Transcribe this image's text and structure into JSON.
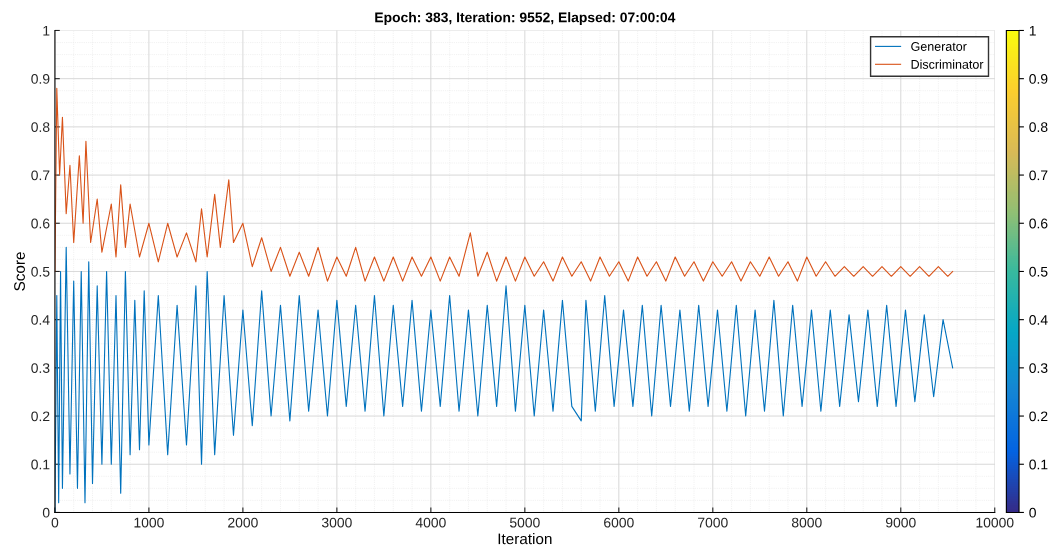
{
  "chart_data": {
    "type": "line",
    "title": "Epoch: 383, Iteration: 9552, Elapsed: 07:00:04",
    "xlabel": "Iteration",
    "ylabel": "Score",
    "xlim": [
      0,
      10000
    ],
    "xticks": [
      0,
      1000,
      2000,
      3000,
      4000,
      5000,
      6000,
      7000,
      8000,
      9000,
      10000
    ],
    "ylim": [
      0,
      1
    ],
    "yticks": [
      0,
      0.1,
      0.2,
      0.3,
      0.4,
      0.5,
      0.6,
      0.7,
      0.8,
      0.9,
      1
    ],
    "clim": [
      0,
      1
    ],
    "cticks": [
      0,
      0.1,
      0.2,
      0.3,
      0.4,
      0.5,
      0.6,
      0.7,
      0.8,
      0.9,
      1
    ],
    "grid": true,
    "legend": "top right",
    "series": [
      {
        "name": "Generator",
        "color": "#0072bd",
        "x": [
          0,
          20,
          40,
          60,
          80,
          120,
          160,
          200,
          240,
          280,
          320,
          360,
          400,
          450,
          500,
          550,
          600,
          650,
          700,
          750,
          800,
          850,
          900,
          950,
          1000,
          1100,
          1200,
          1300,
          1400,
          1500,
          1560,
          1620,
          1700,
          1800,
          1900,
          2000,
          2100,
          2200,
          2300,
          2400,
          2500,
          2600,
          2700,
          2800,
          2900,
          3000,
          3100,
          3200,
          3300,
          3400,
          3500,
          3600,
          3700,
          3800,
          3900,
          4000,
          4100,
          4200,
          4300,
          4400,
          4500,
          4600,
          4700,
          4800,
          4900,
          5000,
          5100,
          5200,
          5300,
          5400,
          5500,
          5600,
          5650,
          5750,
          5850,
          5950,
          6050,
          6150,
          6250,
          6350,
          6450,
          6550,
          6650,
          6750,
          6850,
          6950,
          7050,
          7150,
          7250,
          7350,
          7450,
          7550,
          7650,
          7750,
          7850,
          7950,
          8050,
          8150,
          8250,
          8350,
          8450,
          8550,
          8650,
          8750,
          8850,
          8950,
          9050,
          9150,
          9250,
          9350,
          9450,
          9552
        ],
        "values": [
          0.0,
          0.45,
          0.02,
          0.5,
          0.05,
          0.55,
          0.08,
          0.48,
          0.05,
          0.5,
          0.02,
          0.52,
          0.06,
          0.47,
          0.1,
          0.5,
          0.1,
          0.45,
          0.04,
          0.5,
          0.12,
          0.44,
          0.13,
          0.46,
          0.14,
          0.45,
          0.12,
          0.43,
          0.14,
          0.47,
          0.1,
          0.5,
          0.12,
          0.45,
          0.16,
          0.42,
          0.18,
          0.46,
          0.2,
          0.43,
          0.19,
          0.45,
          0.21,
          0.42,
          0.2,
          0.44,
          0.22,
          0.43,
          0.21,
          0.45,
          0.2,
          0.43,
          0.22,
          0.44,
          0.21,
          0.42,
          0.22,
          0.45,
          0.21,
          0.42,
          0.2,
          0.43,
          0.22,
          0.47,
          0.21,
          0.43,
          0.2,
          0.42,
          0.21,
          0.44,
          0.22,
          0.19,
          0.44,
          0.21,
          0.45,
          0.22,
          0.42,
          0.22,
          0.43,
          0.2,
          0.43,
          0.22,
          0.42,
          0.21,
          0.43,
          0.22,
          0.42,
          0.21,
          0.43,
          0.2,
          0.42,
          0.21,
          0.44,
          0.2,
          0.43,
          0.22,
          0.42,
          0.21,
          0.42,
          0.22,
          0.41,
          0.23,
          0.42,
          0.22,
          0.43,
          0.22,
          0.42,
          0.23,
          0.41,
          0.24,
          0.4,
          0.3
        ]
      },
      {
        "name": "Discriminator",
        "color": "#d95319",
        "x": [
          0,
          20,
          50,
          80,
          120,
          160,
          200,
          260,
          300,
          330,
          380,
          450,
          500,
          600,
          650,
          700,
          750,
          800,
          900,
          1000,
          1100,
          1200,
          1300,
          1400,
          1500,
          1560,
          1620,
          1700,
          1760,
          1850,
          1900,
          2000,
          2100,
          2200,
          2300,
          2400,
          2500,
          2600,
          2700,
          2800,
          2900,
          3000,
          3100,
          3200,
          3300,
          3400,
          3500,
          3600,
          3700,
          3800,
          3900,
          4000,
          4100,
          4200,
          4300,
          4420,
          4500,
          4600,
          4700,
          4800,
          4900,
          5000,
          5100,
          5200,
          5300,
          5400,
          5500,
          5600,
          5700,
          5800,
          5900,
          6000,
          6100,
          6200,
          6300,
          6400,
          6500,
          6600,
          6700,
          6800,
          6900,
          7000,
          7100,
          7200,
          7300,
          7400,
          7500,
          7600,
          7700,
          7800,
          7900,
          8000,
          8100,
          8200,
          8300,
          8400,
          8500,
          8600,
          8700,
          8800,
          8900,
          9000,
          9100,
          9200,
          9300,
          9400,
          9500,
          9552
        ],
        "values": [
          0.5,
          0.88,
          0.7,
          0.82,
          0.62,
          0.72,
          0.56,
          0.74,
          0.6,
          0.77,
          0.56,
          0.65,
          0.54,
          0.64,
          0.53,
          0.68,
          0.55,
          0.64,
          0.53,
          0.6,
          0.52,
          0.6,
          0.53,
          0.58,
          0.52,
          0.63,
          0.53,
          0.66,
          0.55,
          0.69,
          0.56,
          0.6,
          0.51,
          0.57,
          0.5,
          0.55,
          0.49,
          0.54,
          0.49,
          0.55,
          0.48,
          0.53,
          0.49,
          0.55,
          0.48,
          0.53,
          0.48,
          0.53,
          0.48,
          0.53,
          0.49,
          0.53,
          0.48,
          0.53,
          0.49,
          0.58,
          0.49,
          0.54,
          0.48,
          0.53,
          0.48,
          0.53,
          0.49,
          0.52,
          0.48,
          0.53,
          0.49,
          0.52,
          0.48,
          0.53,
          0.49,
          0.52,
          0.48,
          0.53,
          0.49,
          0.52,
          0.48,
          0.53,
          0.49,
          0.52,
          0.48,
          0.52,
          0.49,
          0.52,
          0.48,
          0.52,
          0.49,
          0.53,
          0.49,
          0.52,
          0.48,
          0.53,
          0.49,
          0.52,
          0.49,
          0.51,
          0.49,
          0.51,
          0.49,
          0.51,
          0.49,
          0.51,
          0.49,
          0.51,
          0.49,
          0.51,
          0.49,
          0.5
        ]
      }
    ]
  }
}
